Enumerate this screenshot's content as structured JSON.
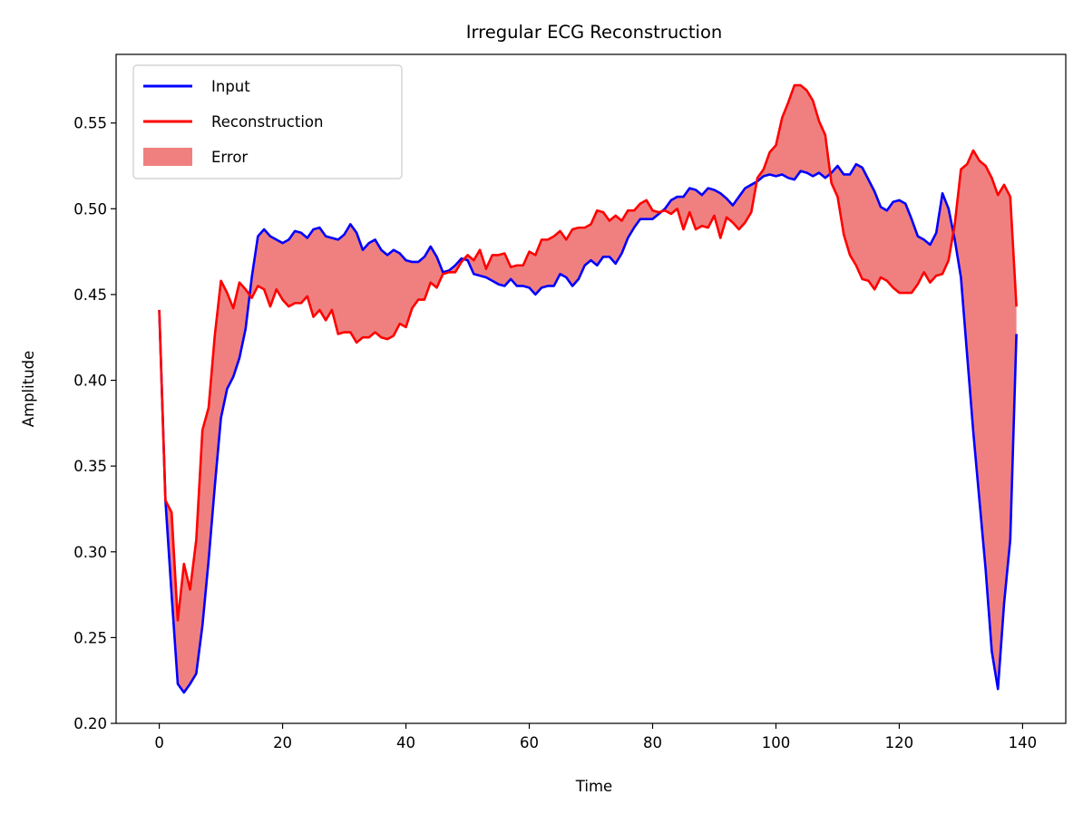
{
  "chart_data": {
    "type": "line",
    "title": "Irregular ECG Reconstruction",
    "xlabel": "Time",
    "ylabel": "Amplitude",
    "xlim": [
      -7,
      147
    ],
    "ylim": [
      0.2,
      0.59
    ],
    "x_ticks": [
      0,
      20,
      40,
      60,
      80,
      100,
      120,
      140
    ],
    "y_ticks": [
      0.2,
      0.25,
      0.3,
      0.35,
      0.4,
      0.45,
      0.5,
      0.55
    ],
    "grid": false,
    "legend_position": "upper-left",
    "series": [
      {
        "name": "Input",
        "color": "#0000ff",
        "keypoints": [
          [
            0,
            0.441
          ],
          [
            1,
            0.33
          ],
          [
            2,
            0.275
          ],
          [
            3,
            0.223
          ],
          [
            4,
            0.218
          ],
          [
            5,
            0.223
          ],
          [
            6,
            0.229
          ],
          [
            7,
            0.257
          ],
          [
            8,
            0.295
          ],
          [
            9,
            0.338
          ],
          [
            10,
            0.378
          ],
          [
            11,
            0.395
          ],
          [
            12,
            0.402
          ],
          [
            13,
            0.413
          ],
          [
            14,
            0.43
          ],
          [
            15,
            0.46
          ],
          [
            16,
            0.484
          ],
          [
            17,
            0.488
          ],
          [
            18,
            0.484
          ],
          [
            20,
            0.48
          ],
          [
            21,
            0.482
          ],
          [
            22,
            0.487
          ],
          [
            23,
            0.486
          ],
          [
            24,
            0.483
          ],
          [
            25,
            0.488
          ],
          [
            26,
            0.489
          ],
          [
            27,
            0.484
          ],
          [
            28,
            0.483
          ],
          [
            29,
            0.482
          ],
          [
            30,
            0.485
          ],
          [
            31,
            0.491
          ],
          [
            32,
            0.486
          ],
          [
            33,
            0.476
          ],
          [
            34,
            0.48
          ],
          [
            35,
            0.482
          ],
          [
            36,
            0.476
          ],
          [
            37,
            0.473
          ],
          [
            38,
            0.476
          ],
          [
            39,
            0.474
          ],
          [
            40,
            0.47
          ],
          [
            41,
            0.469
          ],
          [
            42,
            0.469
          ],
          [
            43,
            0.472
          ],
          [
            44,
            0.478
          ],
          [
            45,
            0.472
          ],
          [
            46,
            0.463
          ],
          [
            47,
            0.464
          ],
          [
            48,
            0.467
          ],
          [
            49,
            0.471
          ],
          [
            50,
            0.47
          ],
          [
            51,
            0.462
          ],
          [
            52,
            0.461
          ],
          [
            53,
            0.46
          ],
          [
            54,
            0.458
          ],
          [
            55,
            0.456
          ],
          [
            56,
            0.455
          ],
          [
            57,
            0.459
          ],
          [
            58,
            0.455
          ],
          [
            59,
            0.455
          ],
          [
            60,
            0.454
          ],
          [
            61,
            0.45
          ],
          [
            62,
            0.454
          ],
          [
            63,
            0.455
          ],
          [
            64,
            0.455
          ],
          [
            65,
            0.462
          ],
          [
            66,
            0.46
          ],
          [
            67,
            0.455
          ],
          [
            68,
            0.459
          ],
          [
            69,
            0.467
          ],
          [
            70,
            0.47
          ],
          [
            71,
            0.467
          ],
          [
            72,
            0.472
          ],
          [
            73,
            0.472
          ],
          [
            74,
            0.468
          ],
          [
            75,
            0.474
          ],
          [
            76,
            0.483
          ],
          [
            77,
            0.489
          ],
          [
            78,
            0.494
          ],
          [
            79,
            0.494
          ],
          [
            80,
            0.494
          ],
          [
            81,
            0.497
          ],
          [
            82,
            0.5
          ],
          [
            83,
            0.505
          ],
          [
            84,
            0.507
          ],
          [
            85,
            0.507
          ],
          [
            86,
            0.512
          ],
          [
            87,
            0.511
          ],
          [
            88,
            0.508
          ],
          [
            89,
            0.512
          ],
          [
            90,
            0.511
          ],
          [
            91,
            0.509
          ],
          [
            92,
            0.506
          ],
          [
            93,
            0.502
          ],
          [
            94,
            0.507
          ],
          [
            95,
            0.512
          ],
          [
            96,
            0.514
          ],
          [
            97,
            0.516
          ],
          [
            98,
            0.519
          ],
          [
            99,
            0.52
          ],
          [
            100,
            0.519
          ],
          [
            101,
            0.52
          ],
          [
            102,
            0.518
          ],
          [
            103,
            0.517
          ],
          [
            104,
            0.522
          ],
          [
            105,
            0.521
          ],
          [
            106,
            0.519
          ],
          [
            107,
            0.521
          ],
          [
            108,
            0.518
          ],
          [
            109,
            0.521
          ],
          [
            110,
            0.525
          ],
          [
            111,
            0.52
          ],
          [
            112,
            0.52
          ],
          [
            113,
            0.526
          ],
          [
            114,
            0.524
          ],
          [
            115,
            0.517
          ],
          [
            116,
            0.51
          ],
          [
            117,
            0.501
          ],
          [
            118,
            0.499
          ],
          [
            119,
            0.504
          ],
          [
            120,
            0.505
          ],
          [
            121,
            0.503
          ],
          [
            122,
            0.494
          ],
          [
            123,
            0.484
          ],
          [
            124,
            0.482
          ],
          [
            125,
            0.479
          ],
          [
            126,
            0.486
          ],
          [
            127,
            0.509
          ],
          [
            128,
            0.5
          ],
          [
            129,
            0.482
          ],
          [
            130,
            0.46
          ],
          [
            131,
            0.415
          ],
          [
            132,
            0.37
          ],
          [
            133,
            0.33
          ],
          [
            134,
            0.29
          ],
          [
            135,
            0.242
          ],
          [
            136,
            0.22
          ],
          [
            137,
            0.27
          ],
          [
            138,
            0.307
          ],
          [
            139,
            0.427
          ]
        ]
      },
      {
        "name": "Reconstruction",
        "color": "#ff0000",
        "keypoints": [
          [
            0,
            0.441
          ],
          [
            1,
            0.33
          ],
          [
            2,
            0.323
          ],
          [
            3,
            0.26
          ],
          [
            4,
            0.293
          ],
          [
            5,
            0.278
          ],
          [
            6,
            0.307
          ],
          [
            7,
            0.371
          ],
          [
            8,
            0.384
          ],
          [
            9,
            0.426
          ],
          [
            10,
            0.458
          ],
          [
            11,
            0.451
          ],
          [
            12,
            0.442
          ],
          [
            13,
            0.457
          ],
          [
            14,
            0.453
          ],
          [
            15,
            0.448
          ],
          [
            16,
            0.455
          ],
          [
            17,
            0.453
          ],
          [
            18,
            0.443
          ],
          [
            19,
            0.453
          ],
          [
            20,
            0.447
          ],
          [
            21,
            0.443
          ],
          [
            22,
            0.445
          ],
          [
            23,
            0.445
          ],
          [
            24,
            0.449
          ],
          [
            25,
            0.437
          ],
          [
            26,
            0.441
          ],
          [
            27,
            0.435
          ],
          [
            28,
            0.441
          ],
          [
            29,
            0.427
          ],
          [
            30,
            0.428
          ],
          [
            31,
            0.428
          ],
          [
            32,
            0.422
          ],
          [
            33,
            0.425
          ],
          [
            34,
            0.425
          ],
          [
            35,
            0.428
          ],
          [
            36,
            0.425
          ],
          [
            37,
            0.424
          ],
          [
            38,
            0.426
          ],
          [
            39,
            0.433
          ],
          [
            40,
            0.431
          ],
          [
            41,
            0.442
          ],
          [
            42,
            0.447
          ],
          [
            43,
            0.447
          ],
          [
            44,
            0.457
          ],
          [
            45,
            0.454
          ],
          [
            46,
            0.462
          ],
          [
            47,
            0.463
          ],
          [
            48,
            0.463
          ],
          [
            49,
            0.469
          ],
          [
            50,
            0.473
          ],
          [
            51,
            0.47
          ],
          [
            52,
            0.476
          ],
          [
            53,
            0.465
          ],
          [
            54,
            0.473
          ],
          [
            55,
            0.473
          ],
          [
            56,
            0.474
          ],
          [
            57,
            0.466
          ],
          [
            58,
            0.467
          ],
          [
            59,
            0.467
          ],
          [
            60,
            0.475
          ],
          [
            61,
            0.473
          ],
          [
            62,
            0.482
          ],
          [
            63,
            0.482
          ],
          [
            64,
            0.484
          ],
          [
            65,
            0.487
          ],
          [
            66,
            0.482
          ],
          [
            67,
            0.488
          ],
          [
            68,
            0.489
          ],
          [
            69,
            0.489
          ],
          [
            70,
            0.491
          ],
          [
            71,
            0.499
          ],
          [
            72,
            0.498
          ],
          [
            73,
            0.493
          ],
          [
            74,
            0.496
          ],
          [
            75,
            0.493
          ],
          [
            76,
            0.499
          ],
          [
            77,
            0.499
          ],
          [
            78,
            0.503
          ],
          [
            79,
            0.505
          ],
          [
            80,
            0.499
          ],
          [
            81,
            0.498
          ],
          [
            82,
            0.499
          ],
          [
            83,
            0.497
          ],
          [
            84,
            0.5
          ],
          [
            85,
            0.488
          ],
          [
            86,
            0.498
          ],
          [
            87,
            0.488
          ],
          [
            88,
            0.49
          ],
          [
            89,
            0.489
          ],
          [
            90,
            0.496
          ],
          [
            91,
            0.483
          ],
          [
            92,
            0.495
          ],
          [
            93,
            0.492
          ],
          [
            94,
            0.488
          ],
          [
            95,
            0.492
          ],
          [
            96,
            0.498
          ],
          [
            97,
            0.518
          ],
          [
            98,
            0.523
          ],
          [
            99,
            0.533
          ],
          [
            100,
            0.537
          ],
          [
            101,
            0.553
          ],
          [
            102,
            0.562
          ],
          [
            103,
            0.572
          ],
          [
            104,
            0.572
          ],
          [
            105,
            0.569
          ],
          [
            106,
            0.563
          ],
          [
            107,
            0.551
          ],
          [
            108,
            0.543
          ],
          [
            109,
            0.515
          ],
          [
            110,
            0.507
          ],
          [
            111,
            0.485
          ],
          [
            112,
            0.473
          ],
          [
            113,
            0.467
          ],
          [
            114,
            0.459
          ],
          [
            115,
            0.458
          ],
          [
            116,
            0.453
          ],
          [
            117,
            0.46
          ],
          [
            118,
            0.458
          ],
          [
            119,
            0.454
          ],
          [
            120,
            0.451
          ],
          [
            121,
            0.451
          ],
          [
            122,
            0.451
          ],
          [
            123,
            0.456
          ],
          [
            124,
            0.463
          ],
          [
            125,
            0.457
          ],
          [
            126,
            0.461
          ],
          [
            127,
            0.462
          ],
          [
            128,
            0.47
          ],
          [
            129,
            0.491
          ],
          [
            130,
            0.523
          ],
          [
            131,
            0.526
          ],
          [
            132,
            0.534
          ],
          [
            133,
            0.528
          ],
          [
            134,
            0.525
          ],
          [
            135,
            0.518
          ],
          [
            136,
            0.508
          ],
          [
            137,
            0.514
          ],
          [
            138,
            0.507
          ],
          [
            139,
            0.443
          ]
        ]
      }
    ],
    "fill": {
      "name": "Error",
      "color": "#f08080",
      "between": [
        "Input",
        "Reconstruction"
      ]
    }
  }
}
